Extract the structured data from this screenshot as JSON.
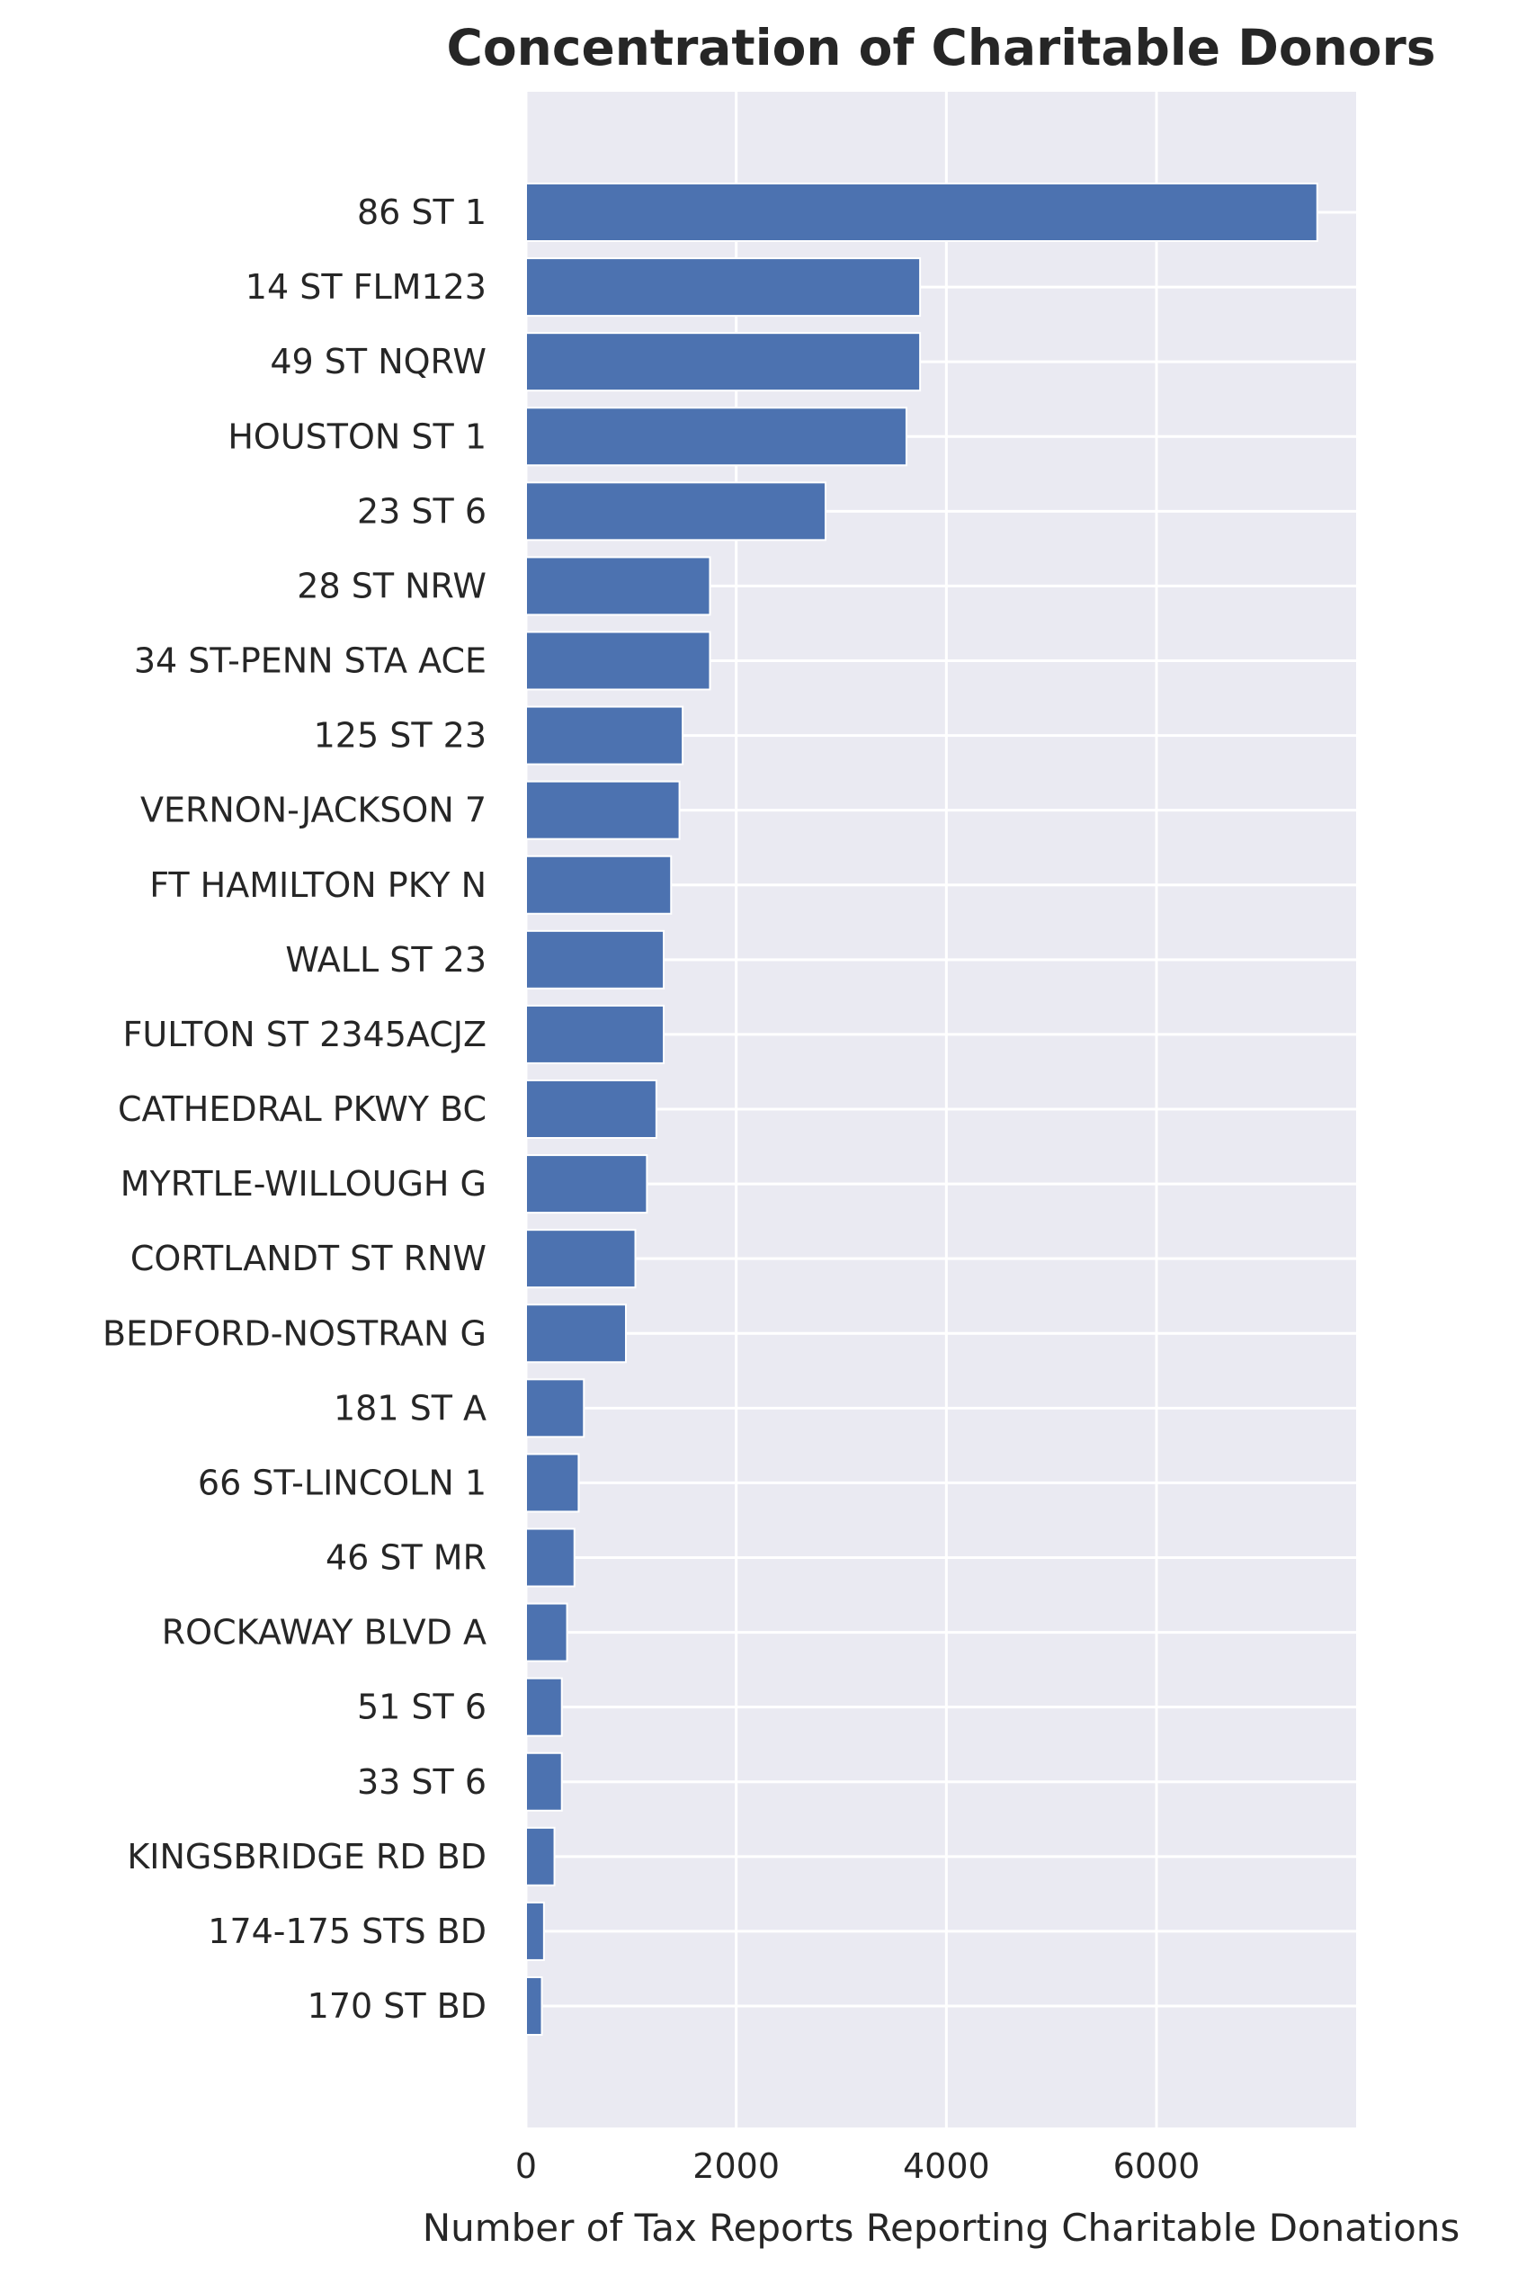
{
  "chart_data": {
    "type": "bar",
    "orientation": "horizontal",
    "title": "Concentration of Charitable Donors",
    "xlabel": "Number of Tax Reports Reporting Charitable Donations",
    "ylabel": "",
    "xlim": [
      0,
      7900
    ],
    "xticks": [
      0,
      2000,
      4000,
      6000
    ],
    "xtick_labels": [
      "0",
      "2000",
      "4000",
      "6000"
    ],
    "grid": true,
    "legend": "none",
    "categories": [
      "86 ST 1",
      "14 ST FLM123",
      "49 ST NQRW",
      "HOUSTON ST 1",
      "23 ST 6",
      "28 ST NRW",
      "34 ST-PENN STA ACE",
      "125 ST 23",
      "VERNON-JACKSON 7",
      "FT HAMILTON PKY N",
      "WALL ST 23",
      "FULTON ST 2345ACJZ",
      "CATHEDRAL PKWY BC",
      "MYRTLE-WILLOUGH G",
      "CORTLANDT ST RNW",
      "BEDFORD-NOSTRAN G",
      "181 ST A",
      "66 ST-LINCOLN 1",
      "46 ST MR",
      "ROCKAWAY BLVD A",
      "51 ST 6",
      "33 ST 6",
      "KINGSBRIDGE RD BD",
      "174-175 STS BD",
      "170 ST BD"
    ],
    "values": [
      7530,
      3750,
      3750,
      3620,
      2850,
      1750,
      1750,
      1490,
      1460,
      1380,
      1310,
      1310,
      1240,
      1150,
      1040,
      950,
      550,
      500,
      460,
      390,
      340,
      340,
      270,
      170,
      150
    ],
    "colors": {
      "bar": "#4c72b0",
      "bar_edge": "#ffffff",
      "plot_background": "#eaeaf2",
      "grid": "#ffffff"
    }
  }
}
